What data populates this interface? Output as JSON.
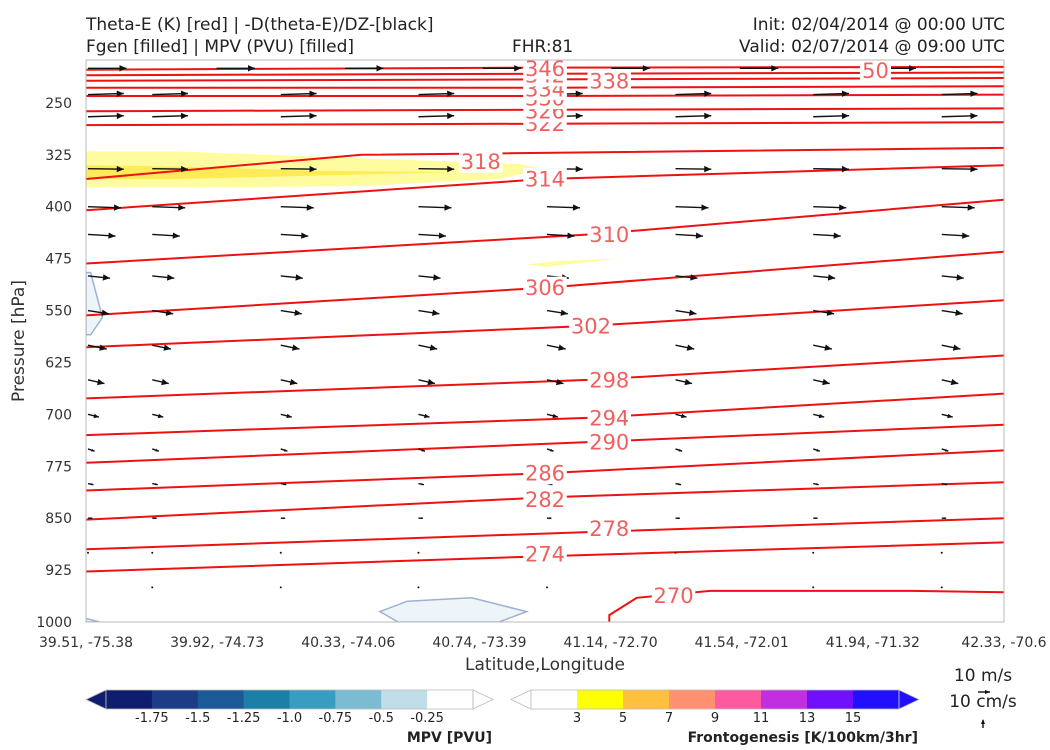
{
  "header": {
    "title_line1": "Theta-E (K) [red] | -D(theta-E)/DZ-[black]",
    "title_line2": "Fgen [filled] | MPV (PVU) [filled]",
    "fhr": "FHR:81",
    "init": "Init: 02/04/2014 @ 00:00 UTC",
    "valid": "Valid: 02/07/2014 @ 09:00 UTC"
  },
  "chart_data": {
    "type": "cross-section",
    "xlabel": "Latitude,Longitude",
    "ylabel": "Pressure [hPa]",
    "ylim": [
      1000,
      190
    ],
    "y_scale": "linear (pressure, decreasing upward)",
    "x_ticks": [
      "39.51, -75.38",
      "39.92, -74.73",
      "40.33, -74.06",
      "40.74, -73.39",
      "41.14, -72.70",
      "41.54, -72.01",
      "41.94, -71.32",
      "42.33, -70.6"
    ],
    "y_ticks": [
      250,
      325,
      400,
      475,
      550,
      625,
      700,
      775,
      850,
      925,
      1000
    ],
    "grid": false,
    "theta_e_contours": [
      {
        "level": 270,
        "points": [
          [
            0.57,
            1000
          ],
          [
            0.57,
            990
          ],
          [
            0.6,
            965
          ],
          [
            0.68,
            955
          ],
          [
            0.9,
            955
          ],
          [
            1.0,
            957
          ]
        ]
      },
      {
        "level": 274,
        "points": [
          [
            0,
            927
          ],
          [
            0.5,
            905
          ],
          [
            1.0,
            885
          ]
        ]
      },
      {
        "level": 278,
        "points": [
          [
            0,
            895
          ],
          [
            0.55,
            870
          ],
          [
            1.0,
            850
          ]
        ]
      },
      {
        "level": 282,
        "points": [
          [
            0,
            852
          ],
          [
            0.5,
            820
          ],
          [
            1.0,
            798
          ]
        ]
      },
      {
        "level": 286,
        "points": [
          [
            0,
            810
          ],
          [
            0.5,
            785
          ],
          [
            1.0,
            752
          ]
        ]
      },
      {
        "level": 290,
        "points": [
          [
            0,
            770
          ],
          [
            0.55,
            740
          ],
          [
            1.0,
            715
          ]
        ]
      },
      {
        "level": 294,
        "points": [
          [
            0,
            730
          ],
          [
            0.55,
            705
          ],
          [
            1.0,
            670
          ]
        ]
      },
      {
        "level": 298,
        "points": [
          [
            0,
            677
          ],
          [
            0.55,
            650
          ],
          [
            1.0,
            615
          ]
        ]
      },
      {
        "level": 302,
        "points": [
          [
            0,
            603
          ],
          [
            0.55,
            572
          ],
          [
            1.0,
            535
          ]
        ]
      },
      {
        "level": 306,
        "points": [
          [
            0,
            557
          ],
          [
            0.5,
            517
          ],
          [
            1.0,
            465
          ]
        ]
      },
      {
        "level": 310,
        "points": [
          [
            0,
            482
          ],
          [
            0.55,
            440
          ],
          [
            1.0,
            390
          ]
        ]
      },
      {
        "level": 314,
        "points": [
          [
            0,
            405
          ],
          [
            0.5,
            360
          ],
          [
            1.0,
            340
          ]
        ]
      },
      {
        "level": 318,
        "points": [
          [
            0,
            360
          ],
          [
            0.3,
            325
          ],
          [
            1.0,
            315
          ]
        ]
      },
      {
        "level": 322,
        "points": [
          [
            0,
            282
          ],
          [
            0.5,
            280
          ],
          [
            1.0,
            278
          ]
        ]
      },
      {
        "level": 326,
        "points": [
          [
            0,
            262
          ],
          [
            0.5,
            260
          ],
          [
            1.0,
            258
          ]
        ]
      },
      {
        "level": 330,
        "points": [
          [
            0,
            240
          ],
          [
            0.5,
            240
          ],
          [
            1.0,
            238
          ]
        ]
      },
      {
        "level": 334,
        "points": [
          [
            0,
            228
          ],
          [
            0.5,
            228
          ],
          [
            1.0,
            226
          ]
        ]
      },
      {
        "level": 338,
        "points": [
          [
            0,
            218
          ],
          [
            0.5,
            216
          ],
          [
            1.0,
            214
          ]
        ]
      },
      {
        "level": 342,
        "points": [
          [
            0,
            210
          ],
          [
            0.5,
            208
          ],
          [
            1.0,
            206
          ]
        ]
      },
      {
        "level": 346,
        "points": [
          [
            0,
            202
          ],
          [
            0.5,
            199
          ],
          [
            1.0,
            198
          ]
        ]
      }
    ],
    "contour_labels": [
      {
        "text": "270",
        "x": 0.64,
        "p": 962
      },
      {
        "text": "274",
        "x": 0.5,
        "p": 902
      },
      {
        "text": "278",
        "x": 0.57,
        "p": 865
      },
      {
        "text": "282",
        "x": 0.5,
        "p": 823
      },
      {
        "text": "286",
        "x": 0.5,
        "p": 785
      },
      {
        "text": "290",
        "x": 0.57,
        "p": 740
      },
      {
        "text": "294",
        "x": 0.57,
        "p": 705
      },
      {
        "text": "298",
        "x": 0.57,
        "p": 650
      },
      {
        "text": "302",
        "x": 0.55,
        "p": 572
      },
      {
        "text": "306",
        "x": 0.5,
        "p": 517
      },
      {
        "text": "310",
        "x": 0.57,
        "p": 440
      },
      {
        "text": "314",
        "x": 0.5,
        "p": 360
      },
      {
        "text": "318",
        "x": 0.43,
        "p": 335
      },
      {
        "text": "322",
        "x": 0.5,
        "p": 280
      },
      {
        "text": "326",
        "x": 0.5,
        "p": 262
      },
      {
        "text": "330",
        "x": 0.5,
        "p": 243
      },
      {
        "text": "334",
        "x": 0.5,
        "p": 230
      },
      {
        "text": "338",
        "x": 0.57,
        "p": 218
      },
      {
        "text": "342",
        "x": 0.5,
        "p": 210
      },
      {
        "text": "346",
        "x": 0.5,
        "p": 200
      },
      {
        "text": "50",
        "x": 0.86,
        "p": 203
      }
    ],
    "fgen_fill": {
      "color_outer": "#fffca0",
      "color_inner": "#ffeb55",
      "outer_region": [
        [
          0,
          320
        ],
        [
          0.1,
          320
        ],
        [
          0.3,
          330
        ],
        [
          0.47,
          338
        ],
        [
          0.5,
          345
        ],
        [
          0.45,
          360
        ],
        [
          0.3,
          370
        ],
        [
          0.15,
          372
        ],
        [
          0,
          372
        ]
      ],
      "inner_region": [
        [
          0,
          340
        ],
        [
          0.1,
          342
        ],
        [
          0.25,
          348
        ],
        [
          0.4,
          350
        ],
        [
          0.25,
          355
        ],
        [
          0.1,
          360
        ],
        [
          0,
          360
        ]
      ],
      "small_region": [
        [
          0.48,
          483
        ],
        [
          0.52,
          478
        ],
        [
          0.58,
          475
        ],
        [
          0.5,
          487
        ]
      ]
    },
    "mpv_fill": {
      "color": "#eef5f8",
      "edge_color": "#9fb0d5",
      "regions": [
        [
          [
            0,
            335
          ],
          [
            0.023,
            335
          ],
          [
            0.018,
            365
          ],
          [
            0,
            365
          ]
        ],
        [
          [
            0,
            495
          ],
          [
            0.005,
            495
          ],
          [
            0.018,
            560
          ],
          [
            0.005,
            585
          ],
          [
            0,
            585
          ]
        ],
        [
          [
            0.32,
            985
          ],
          [
            0.35,
            970
          ],
          [
            0.42,
            965
          ],
          [
            0.48,
            985
          ],
          [
            0.45,
            1000
          ],
          [
            0.34,
            1000
          ]
        ],
        [
          [
            0,
            995
          ],
          [
            0.015,
            1000
          ],
          [
            0,
            1000
          ]
        ]
      ]
    },
    "wind_vectors": {
      "rows": [
        {
          "p": 200,
          "xs": [
            0.0,
            0.14,
            0.28,
            0.43,
            0.57,
            0.71,
            0.86
          ],
          "u": 70,
          "v": 0
        },
        {
          "p": 238,
          "xs": [
            0.0,
            0.07,
            0.21,
            0.36,
            0.5,
            0.64,
            0.79,
            0.93
          ],
          "u": 65,
          "v": 2
        },
        {
          "p": 270,
          "xs": [
            0.0,
            0.07,
            0.21,
            0.36,
            0.5,
            0.64,
            0.79,
            0.93
          ],
          "u": 65,
          "v": 2
        },
        {
          "p": 345,
          "xs": [
            0.0,
            0.07,
            0.21,
            0.36,
            0.5,
            0.64,
            0.79,
            0.93
          ],
          "u": 65,
          "v": -1
        },
        {
          "p": 400,
          "xs": [
            0.0,
            0.07,
            0.21,
            0.36,
            0.5,
            0.64,
            0.79,
            0.93
          ],
          "u": 60,
          "v": -2
        },
        {
          "p": 440,
          "xs": [
            0.0,
            0.07,
            0.21,
            0.36,
            0.5,
            0.64,
            0.79,
            0.93
          ],
          "u": 50,
          "v": -3
        },
        {
          "p": 500,
          "xs": [
            0.0,
            0.07,
            0.21,
            0.36,
            0.5,
            0.64,
            0.79,
            0.93
          ],
          "u": 40,
          "v": -4
        },
        {
          "p": 550,
          "xs": [
            0.0,
            0.07,
            0.21,
            0.36,
            0.5,
            0.64,
            0.79,
            0.93
          ],
          "u": 38,
          "v": -6
        },
        {
          "p": 600,
          "xs": [
            0.0,
            0.07,
            0.21,
            0.36,
            0.5,
            0.64,
            0.79,
            0.93
          ],
          "u": 34,
          "v": -7
        },
        {
          "p": 650,
          "xs": [
            0.0,
            0.07,
            0.21,
            0.36,
            0.5,
            0.64,
            0.79,
            0.93
          ],
          "u": 30,
          "v": -7
        },
        {
          "p": 700,
          "xs": [
            0.0,
            0.07,
            0.21,
            0.36,
            0.5,
            0.64,
            0.79,
            0.93
          ],
          "u": 20,
          "v": -5
        },
        {
          "p": 750,
          "xs": [
            0.0,
            0.07,
            0.21,
            0.36,
            0.5,
            0.64,
            0.79,
            0.93
          ],
          "u": 12,
          "v": -4
        },
        {
          "p": 800,
          "xs": [
            0.0,
            0.07,
            0.21,
            0.36,
            0.5,
            0.64,
            0.79,
            0.93
          ],
          "u": 10,
          "v": -2
        },
        {
          "p": 850,
          "xs": [
            0.0,
            0.07,
            0.21,
            0.36,
            0.5,
            0.64,
            0.79,
            0.93
          ],
          "u": 8,
          "v": 0
        },
        {
          "p": 900,
          "xs": [
            0.0,
            0.07,
            0.21,
            0.36,
            0.5,
            0.64,
            0.79,
            0.93
          ],
          "u": 2,
          "v": 0
        },
        {
          "p": 950,
          "xs": [
            0.07,
            0.21,
            0.36,
            0.5,
            0.64,
            0.79,
            0.93
          ],
          "u": 1,
          "v": 0
        }
      ]
    }
  },
  "colorbars": {
    "mpv": {
      "title": "MPV [PVU]",
      "colors": [
        "#0f1d6e",
        "#1d3c86",
        "#1b5a96",
        "#1d7fa8",
        "#3a9cc0",
        "#7bbcd2",
        "#bfdde6",
        "#ffffff"
      ],
      "labels": [
        "-1.75",
        "-1.5",
        "-1.25",
        "-1.0",
        "-0.75",
        "-0.5",
        "-0.25"
      ]
    },
    "fgen": {
      "title": "Frontogenesis [K/100km/3hr]",
      "colors": [
        "#ffffff",
        "#ffff00",
        "#ffc040",
        "#ff9070",
        "#ff5aa0",
        "#c030e0",
        "#7010ff",
        "#2010ff"
      ],
      "labels": [
        "3",
        "5",
        "7",
        "9",
        "11",
        "13",
        "15"
      ]
    }
  },
  "vector_key": {
    "horizontal": "10 m/s",
    "vertical": "10 cm/s"
  }
}
